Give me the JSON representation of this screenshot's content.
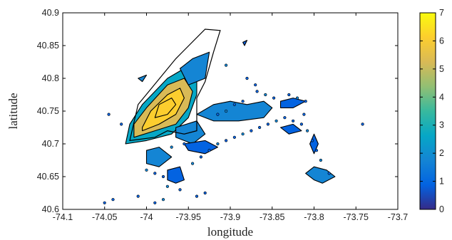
{
  "chart_data": {
    "type": "heatmap",
    "subtype": "filled-contour-density-map",
    "xlabel": "longitude",
    "ylabel": "latitude",
    "xlim": [
      -74.1,
      -73.7
    ],
    "ylim": [
      40.6,
      40.9
    ],
    "xticks": [
      -74.1,
      -74.05,
      -74,
      -73.95,
      -73.9,
      -73.85,
      -73.8,
      -73.75,
      -73.7
    ],
    "xtick_labels": [
      "-74.1",
      "-74.05",
      "-74",
      "-73.95",
      "-73.9",
      "-73.85",
      "-73.8",
      "-73.75",
      "-73.7"
    ],
    "yticks": [
      40.6,
      40.65,
      40.7,
      40.75,
      40.8,
      40.85,
      40.9
    ],
    "ytick_labels": [
      "40.6",
      "40.65",
      "40.7",
      "40.75",
      "40.8",
      "40.85",
      "40.9"
    ],
    "colorbar": {
      "range": [
        0,
        7
      ],
      "ticks": [
        0,
        1,
        2,
        3,
        4,
        5,
        6,
        7
      ],
      "tick_labels": [
        "0",
        "1",
        "2",
        "3",
        "4",
        "5",
        "6",
        "7"
      ],
      "colormap": [
        "#352a87",
        "#0363e1",
        "#1485d4",
        "#06a7c6",
        "#38b99e",
        "#92bf73",
        "#d9ba56",
        "#fcce2e",
        "#f9fb0e"
      ]
    },
    "grid": false,
    "outline": [
      [
        -74.02,
        40.705
      ],
      [
        -73.99,
        40.71
      ],
      [
        -73.975,
        40.72
      ],
      [
        -73.955,
        40.715
      ],
      [
        -73.94,
        40.72
      ],
      [
        -73.94,
        40.77
      ],
      [
        -73.93,
        40.795
      ],
      [
        -73.92,
        40.84
      ],
      [
        -73.912,
        40.873
      ],
      [
        -73.93,
        40.875
      ],
      [
        -73.965,
        40.83
      ],
      [
        -74.01,
        40.76
      ],
      [
        -74.02,
        40.705
      ]
    ],
    "regions": [
      {
        "level": 3,
        "points": [
          [
            -74.025,
            40.7
          ],
          [
            -74.0,
            40.705
          ],
          [
            -73.97,
            40.715
          ],
          [
            -73.95,
            40.74
          ],
          [
            -73.94,
            40.775
          ],
          [
            -73.94,
            40.805
          ],
          [
            -73.955,
            40.815
          ],
          [
            -73.975,
            40.8
          ],
          [
            -74.005,
            40.76
          ],
          [
            -74.02,
            40.73
          ],
          [
            -74.025,
            40.7
          ]
        ]
      },
      {
        "level": 5,
        "points": [
          [
            -74.015,
            40.71
          ],
          [
            -73.99,
            40.72
          ],
          [
            -73.965,
            40.73
          ],
          [
            -73.95,
            40.755
          ],
          [
            -73.945,
            40.78
          ],
          [
            -73.955,
            40.8
          ],
          [
            -73.975,
            40.79
          ],
          [
            -74.0,
            40.755
          ],
          [
            -74.015,
            40.73
          ],
          [
            -74.015,
            40.71
          ]
        ]
      },
      {
        "level": 6,
        "points": [
          [
            -74.005,
            40.72
          ],
          [
            -73.985,
            40.73
          ],
          [
            -73.965,
            40.745
          ],
          [
            -73.955,
            40.77
          ],
          [
            -73.96,
            40.785
          ],
          [
            -73.975,
            40.775
          ],
          [
            -73.995,
            40.75
          ],
          [
            -74.005,
            40.725
          ]
        ]
      },
      {
        "level": 6.5,
        "points": [
          [
            -73.99,
            40.74
          ],
          [
            -73.975,
            40.745
          ],
          [
            -73.965,
            40.76
          ],
          [
            -73.97,
            40.77
          ],
          [
            -73.985,
            40.76
          ]
        ]
      },
      {
        "level": 1.5,
        "points": [
          [
            -73.96,
            40.815
          ],
          [
            -73.945,
            40.83
          ],
          [
            -73.925,
            40.84
          ],
          [
            -73.93,
            40.8
          ],
          [
            -73.95,
            40.79
          ]
        ]
      },
      {
        "level": 1.5,
        "points": [
          [
            -73.94,
            40.745
          ],
          [
            -73.92,
            40.76
          ],
          [
            -73.9,
            40.765
          ],
          [
            -73.88,
            40.76
          ],
          [
            -73.86,
            40.765
          ],
          [
            -73.85,
            40.755
          ],
          [
            -73.86,
            40.74
          ],
          [
            -73.89,
            40.735
          ],
          [
            -73.92,
            40.735
          ]
        ]
      },
      {
        "level": 1,
        "points": [
          [
            -73.84,
            40.765
          ],
          [
            -73.825,
            40.77
          ],
          [
            -73.81,
            40.765
          ],
          [
            -73.825,
            40.755
          ],
          [
            -73.84,
            40.755
          ]
        ]
      },
      {
        "level": 1.5,
        "points": [
          [
            -73.965,
            40.725
          ],
          [
            -73.94,
            40.735
          ],
          [
            -73.93,
            40.715
          ],
          [
            -73.945,
            40.7
          ],
          [
            -73.965,
            40.71
          ]
        ]
      },
      {
        "level": 1.5,
        "points": [
          [
            -74.0,
            40.69
          ],
          [
            -73.985,
            40.695
          ],
          [
            -73.97,
            40.68
          ],
          [
            -73.985,
            40.665
          ],
          [
            -74.0,
            40.67
          ]
        ]
      },
      {
        "level": 1,
        "points": [
          [
            -73.975,
            40.66
          ],
          [
            -73.96,
            40.665
          ],
          [
            -73.955,
            40.645
          ],
          [
            -73.965,
            40.64
          ],
          [
            -73.975,
            40.645
          ]
        ]
      },
      {
        "level": 1,
        "points": [
          [
            -73.955,
            40.7
          ],
          [
            -73.93,
            40.705
          ],
          [
            -73.915,
            40.695
          ],
          [
            -73.93,
            40.685
          ],
          [
            -73.95,
            40.69
          ]
        ]
      },
      {
        "level": 1,
        "points": [
          [
            -73.84,
            40.725
          ],
          [
            -73.825,
            40.73
          ],
          [
            -73.815,
            40.72
          ],
          [
            -73.83,
            40.715
          ]
        ]
      },
      {
        "level": 1,
        "points": [
          [
            -73.8,
            40.715
          ],
          [
            -73.795,
            40.7
          ],
          [
            -73.8,
            40.685
          ],
          [
            -73.805,
            40.7
          ]
        ]
      },
      {
        "level": 1.5,
        "points": [
          [
            -73.8,
            40.665
          ],
          [
            -73.785,
            40.66
          ],
          [
            -73.775,
            40.65
          ],
          [
            -73.79,
            40.64
          ],
          [
            -73.8,
            40.645
          ],
          [
            -73.81,
            40.655
          ]
        ]
      },
      {
        "level": 1.5,
        "points": [
          [
            -74.01,
            40.8
          ],
          [
            -74.0,
            40.805
          ],
          [
            -74.005,
            40.795
          ]
        ]
      },
      {
        "level": 1,
        "points": [
          [
            -73.885,
            40.855
          ],
          [
            -73.88,
            40.858
          ],
          [
            -73.883,
            40.85
          ]
        ]
      }
    ],
    "scatter_lon": [
      -74.03,
      -74.045,
      -74.0,
      -73.99,
      -73.98,
      -73.975,
      -73.96,
      -73.945,
      -73.935,
      -73.925,
      -73.915,
      -73.905,
      -73.895,
      -73.885,
      -73.875,
      -73.865,
      -73.855,
      -73.845,
      -73.835,
      -73.825,
      -73.815,
      -73.808,
      -73.802,
      -73.797,
      -73.792,
      -73.812,
      -73.782,
      -73.868,
      -73.858,
      -73.848,
      -73.94,
      -73.93,
      -73.98,
      -73.99,
      -74.01,
      -74.04,
      -74.05,
      -73.97,
      -73.955,
      -73.915,
      -73.905,
      -73.895,
      -73.885,
      -73.83,
      -73.82,
      -73.81,
      -73.742,
      -73.905,
      -73.88,
      -73.87
    ],
    "scatter_lat": [
      40.73,
      40.745,
      40.66,
      40.655,
      40.65,
      40.635,
      40.63,
      40.67,
      40.68,
      40.69,
      40.7,
      40.705,
      40.71,
      40.715,
      40.72,
      40.725,
      40.73,
      40.735,
      40.74,
      40.735,
      40.73,
      40.72,
      40.705,
      40.69,
      40.675,
      40.745,
      40.655,
      40.78,
      40.775,
      40.77,
      40.62,
      40.625,
      40.615,
      40.61,
      40.62,
      40.615,
      40.61,
      40.695,
      40.7,
      40.745,
      40.75,
      40.76,
      40.765,
      40.775,
      40.77,
      40.765,
      40.73,
      40.82,
      40.8,
      40.79
    ],
    "scatter_level": [
      1,
      1,
      2,
      1,
      1,
      2,
      1,
      2,
      1,
      1,
      2,
      1,
      1,
      2,
      1,
      1,
      1,
      2,
      1,
      1,
      1,
      2,
      1,
      1,
      2,
      1,
      1,
      1,
      2,
      1,
      1,
      1,
      2,
      1,
      1,
      1,
      1,
      2,
      1,
      1,
      2,
      1,
      1,
      1,
      2,
      1,
      1,
      2,
      1,
      1
    ]
  }
}
